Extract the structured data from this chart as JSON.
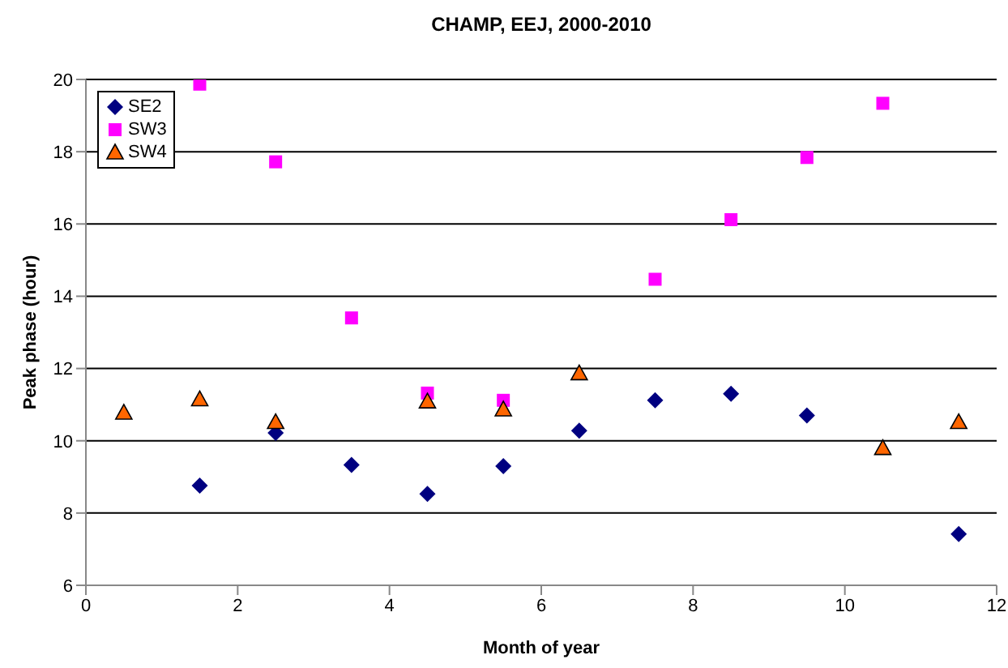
{
  "chart_data": {
    "type": "scatter",
    "title": "CHAMP, EEJ, 2000-2010",
    "xlabel": "Month of year",
    "ylabel": "Peak phase (hour)",
    "xlim": [
      0,
      12
    ],
    "xticks": [
      0,
      2,
      4,
      6,
      8,
      10,
      12
    ],
    "ylim": [
      6,
      20
    ],
    "yticks": [
      6,
      8,
      10,
      12,
      14,
      16,
      18,
      20
    ],
    "grid": "y",
    "legend": "top left",
    "series": [
      {
        "name": "SE2",
        "color": "#000080",
        "marker": "diamond",
        "x": [
          1.5,
          2.5,
          3.5,
          4.5,
          5.5,
          6.5,
          7.5,
          8.5,
          9.5,
          10.5,
          11.5
        ],
        "values": [
          8.76,
          10.22,
          9.33,
          8.53,
          9.3,
          10.28,
          11.12,
          11.3,
          10.7,
          null,
          7.42
        ]
      },
      {
        "name": "SW3",
        "color": "#ff00ff",
        "marker": "square",
        "x": [
          1.5,
          2.5,
          3.5,
          4.5,
          5.5,
          6.5,
          7.5,
          8.5,
          9.5,
          10.5
        ],
        "values": [
          19.87,
          17.72,
          13.4,
          11.32,
          11.12,
          null,
          14.47,
          16.12,
          17.84,
          19.34
        ]
      },
      {
        "name": "SW4",
        "color": "#ff6600",
        "marker": "triangle",
        "x": [
          0.5,
          1.5,
          2.5,
          4.5,
          5.5,
          6.5,
          10.5,
          11.5
        ],
        "values": [
          10.78,
          11.15,
          10.52,
          11.09,
          10.87,
          11.87,
          9.8,
          10.52
        ]
      }
    ]
  }
}
